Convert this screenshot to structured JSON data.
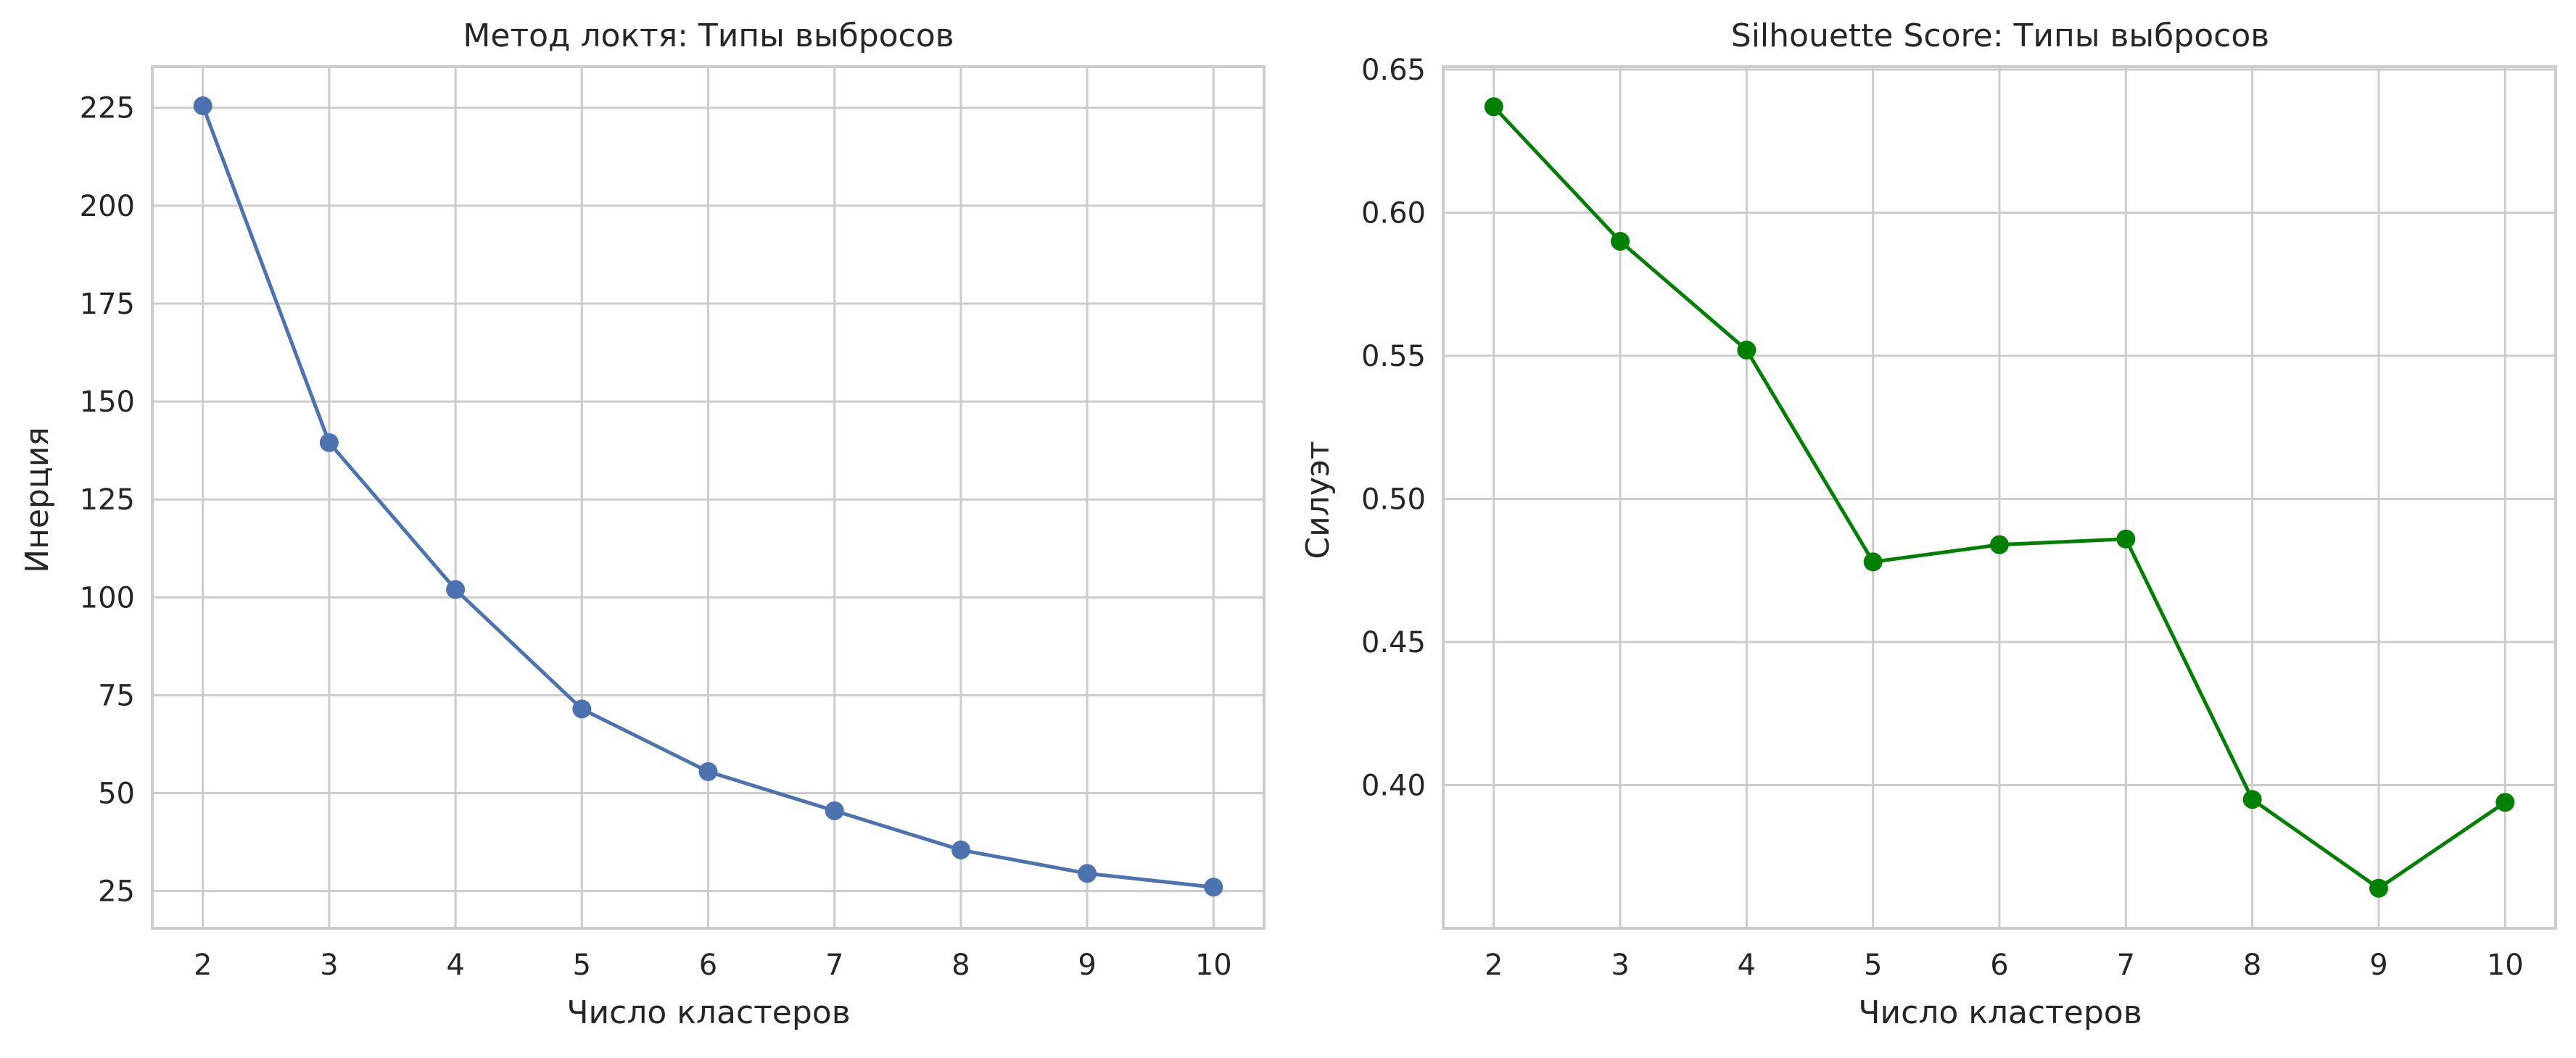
{
  "chart_data": [
    {
      "type": "line",
      "title": "Метод локтя: Типы выбросов",
      "xlabel": "Число кластеров",
      "ylabel": "Инерция",
      "x": [
        2,
        3,
        4,
        5,
        6,
        7,
        8,
        9,
        10
      ],
      "series": [
        {
          "values": [
            225.5,
            139.5,
            102,
            71.5,
            55.5,
            45.5,
            35.5,
            29.5,
            26
          ],
          "color": "#4c72b0"
        }
      ],
      "xticks": [
        "2",
        "3",
        "4",
        "5",
        "6",
        "7",
        "8",
        "9",
        "10"
      ],
      "yticks": [
        "25",
        "50",
        "75",
        "100",
        "125",
        "150",
        "175",
        "200",
        "225"
      ],
      "xlim": [
        1.6,
        10.4
      ],
      "ylim": [
        15.5,
        235.5
      ],
      "grid": true
    },
    {
      "type": "line",
      "title": "Silhouette Score: Типы выбросов",
      "xlabel": "Число кластеров",
      "ylabel": "Силуэт",
      "x": [
        2,
        3,
        4,
        5,
        6,
        7,
        8,
        9,
        10
      ],
      "series": [
        {
          "values": [
            0.637,
            0.59,
            0.552,
            0.478,
            0.484,
            0.486,
            0.395,
            0.364,
            0.394
          ],
          "color": "#008000"
        }
      ],
      "xticks": [
        "2",
        "3",
        "4",
        "5",
        "6",
        "7",
        "8",
        "9",
        "10"
      ],
      "yticks": [
        "0.40",
        "0.45",
        "0.50",
        "0.55",
        "0.60",
        "0.65"
      ],
      "xlim": [
        1.6,
        10.4
      ],
      "ylim": [
        0.35,
        0.651
      ],
      "grid": true
    }
  ]
}
